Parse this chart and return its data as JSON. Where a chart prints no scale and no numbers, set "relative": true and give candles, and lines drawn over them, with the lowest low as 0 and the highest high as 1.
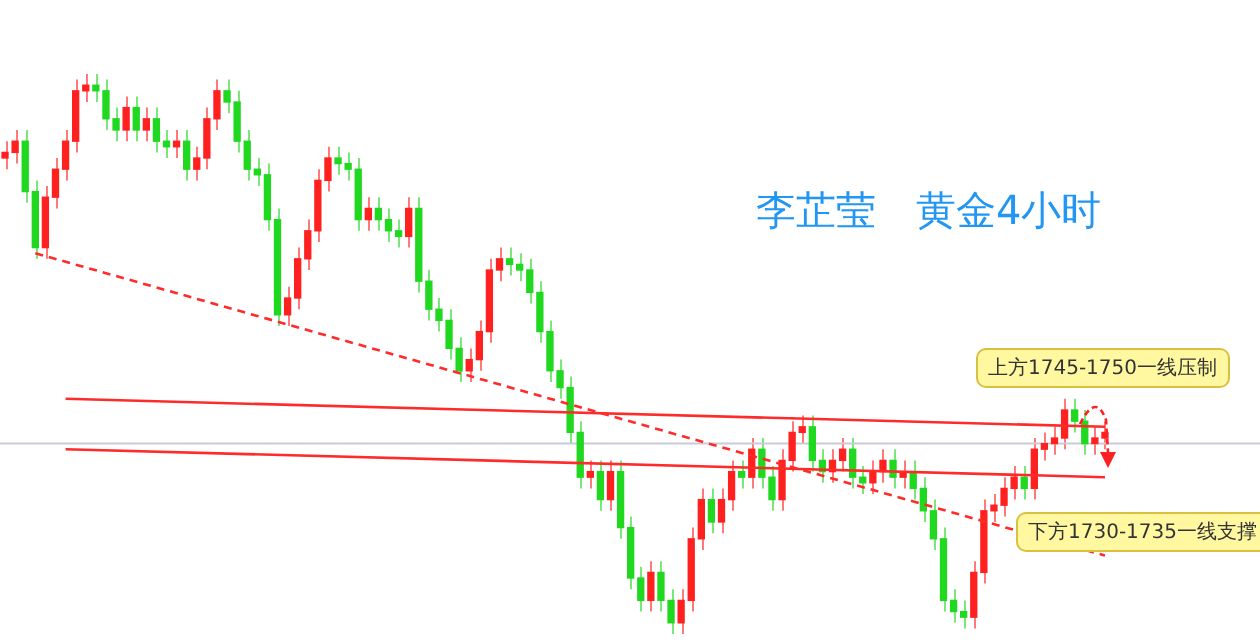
{
  "chart_data": {
    "type": "candlestick",
    "title": "李芷莹　黄金4小时",
    "relative": true,
    "categories": [
      null,
      null,
      null,
      null,
      null,
      null,
      null,
      null,
      null,
      null,
      null,
      null,
      null,
      null,
      null,
      null,
      null,
      null,
      null,
      null,
      null,
      null,
      null,
      null,
      null,
      null,
      null,
      null,
      null,
      null,
      null,
      null,
      null,
      null,
      null,
      null,
      null,
      null,
      null,
      null,
      null,
      null,
      null,
      null,
      null,
      null,
      null,
      null,
      null,
      null,
      null,
      null,
      null,
      null,
      null,
      null,
      null,
      null,
      null,
      null,
      null,
      null,
      null,
      null,
      null,
      null,
      null,
      null,
      null,
      null,
      null,
      null,
      null,
      null,
      null,
      null,
      null,
      null,
      null,
      null,
      null,
      null,
      null,
      null,
      null,
      null,
      null,
      null,
      null,
      null,
      null,
      null,
      null,
      null,
      null,
      null,
      null,
      null,
      null,
      null,
      null,
      null,
      null,
      null,
      null,
      null,
      null,
      null,
      null,
      null
    ],
    "ohlc": [
      [
        0.85,
        0.88,
        0.83,
        0.86
      ],
      [
        0.86,
        0.9,
        0.84,
        0.88
      ],
      [
        0.88,
        0.9,
        0.77,
        0.79
      ],
      [
        0.79,
        0.81,
        0.67,
        0.69
      ],
      [
        0.69,
        0.8,
        0.67,
        0.78
      ],
      [
        0.78,
        0.85,
        0.76,
        0.83
      ],
      [
        0.83,
        0.9,
        0.81,
        0.88
      ],
      [
        0.88,
        0.99,
        0.86,
        0.97
      ],
      [
        0.97,
        1,
        0.95,
        0.98
      ],
      [
        0.98,
        1,
        0.95,
        0.97
      ],
      [
        0.97,
        0.99,
        0.9,
        0.92
      ],
      [
        0.92,
        0.94,
        0.88,
        0.9
      ],
      [
        0.9,
        0.96,
        0.88,
        0.94
      ],
      [
        0.94,
        0.96,
        0.88,
        0.9
      ],
      [
        0.9,
        0.94,
        0.88,
        0.92
      ],
      [
        0.92,
        0.94,
        0.86,
        0.88
      ],
      [
        0.88,
        0.9,
        0.85,
        0.87
      ],
      [
        0.87,
        0.9,
        0.85,
        0.88
      ],
      [
        0.88,
        0.9,
        0.81,
        0.83
      ],
      [
        0.83,
        0.87,
        0.81,
        0.85
      ],
      [
        0.85,
        0.94,
        0.83,
        0.92
      ],
      [
        0.92,
        0.99,
        0.9,
        0.97
      ],
      [
        0.97,
        0.99,
        0.93,
        0.95
      ],
      [
        0.95,
        0.97,
        0.86,
        0.88
      ],
      [
        0.88,
        0.9,
        0.81,
        0.83
      ],
      [
        0.83,
        0.85,
        0.8,
        0.82
      ],
      [
        0.82,
        0.84,
        0.72,
        0.74
      ],
      [
        0.74,
        0.76,
        0.55,
        0.57
      ],
      [
        0.57,
        0.62,
        0.55,
        0.6
      ],
      [
        0.6,
        0.69,
        0.58,
        0.67
      ],
      [
        0.67,
        0.74,
        0.65,
        0.72
      ],
      [
        0.72,
        0.83,
        0.7,
        0.81
      ],
      [
        0.81,
        0.87,
        0.79,
        0.85
      ],
      [
        0.85,
        0.87,
        0.82,
        0.84
      ],
      [
        0.84,
        0.86,
        0.81,
        0.83
      ],
      [
        0.83,
        0.85,
        0.72,
        0.74
      ],
      [
        0.74,
        0.78,
        0.72,
        0.76
      ],
      [
        0.76,
        0.78,
        0.72,
        0.74
      ],
      [
        0.74,
        0.76,
        0.7,
        0.72
      ],
      [
        0.72,
        0.74,
        0.69,
        0.71
      ],
      [
        0.71,
        0.78,
        0.69,
        0.76
      ],
      [
        0.76,
        0.78,
        0.61,
        0.63
      ],
      [
        0.63,
        0.65,
        0.56,
        0.58
      ],
      [
        0.58,
        0.6,
        0.54,
        0.56
      ],
      [
        0.56,
        0.58,
        0.49,
        0.51
      ],
      [
        0.51,
        0.53,
        0.45,
        0.47
      ],
      [
        0.47,
        0.51,
        0.45,
        0.49
      ],
      [
        0.49,
        0.56,
        0.47,
        0.54
      ],
      [
        0.54,
        0.67,
        0.52,
        0.65
      ],
      [
        0.65,
        0.69,
        0.63,
        0.67
      ],
      [
        0.67,
        0.69,
        0.64,
        0.66
      ],
      [
        0.66,
        0.68,
        0.63,
        0.65
      ],
      [
        0.65,
        0.67,
        0.59,
        0.61
      ],
      [
        0.61,
        0.63,
        0.52,
        0.54
      ],
      [
        0.54,
        0.56,
        0.45,
        0.47
      ],
      [
        0.47,
        0.49,
        0.42,
        0.44
      ],
      [
        0.44,
        0.46,
        0.34,
        0.36
      ],
      [
        0.36,
        0.38,
        0.26,
        0.28
      ],
      [
        0.28,
        0.31,
        0.26,
        0.29
      ],
      [
        0.29,
        0.31,
        0.22,
        0.24
      ],
      [
        0.24,
        0.31,
        0.22,
        0.29
      ],
      [
        0.29,
        0.31,
        0.17,
        0.19
      ],
      [
        0.19,
        0.21,
        0.08,
        0.1
      ],
      [
        0.1,
        0.12,
        0.04,
        0.06
      ],
      [
        0.06,
        0.13,
        0.04,
        0.11
      ],
      [
        0.11,
        0.13,
        0.04,
        0.06
      ],
      [
        0.06,
        0.08,
        0,
        0.02
      ],
      [
        0.02,
        0.08,
        0,
        0.06
      ],
      [
        0.06,
        0.19,
        0.04,
        0.17
      ],
      [
        0.17,
        0.26,
        0.15,
        0.24
      ],
      [
        0.24,
        0.26,
        0.18,
        0.2
      ],
      [
        0.2,
        0.26,
        0.18,
        0.24
      ],
      [
        0.24,
        0.31,
        0.22,
        0.29
      ],
      [
        0.29,
        0.31,
        0.26,
        0.28
      ],
      [
        0.28,
        0.35,
        0.26,
        0.33
      ],
      [
        0.33,
        0.35,
        0.26,
        0.28
      ],
      [
        0.28,
        0.3,
        0.22,
        0.24
      ],
      [
        0.24,
        0.33,
        0.22,
        0.31
      ],
      [
        0.31,
        0.38,
        0.29,
        0.36
      ],
      [
        0.36,
        0.39,
        0.34,
        0.37
      ],
      [
        0.37,
        0.39,
        0.29,
        0.31
      ],
      [
        0.31,
        0.33,
        0.27,
        0.29
      ],
      [
        0.29,
        0.33,
        0.27,
        0.31
      ],
      [
        0.31,
        0.35,
        0.29,
        0.33
      ],
      [
        0.33,
        0.35,
        0.26,
        0.28
      ],
      [
        0.28,
        0.3,
        0.25,
        0.27
      ],
      [
        0.27,
        0.31,
        0.25,
        0.29
      ],
      [
        0.29,
        0.33,
        0.27,
        0.31
      ],
      [
        0.31,
        0.33,
        0.26,
        0.28
      ],
      [
        0.28,
        0.31,
        0.26,
        0.29
      ],
      [
        0.29,
        0.31,
        0.24,
        0.26
      ],
      [
        0.26,
        0.28,
        0.2,
        0.22
      ],
      [
        0.22,
        0.24,
        0.15,
        0.17
      ],
      [
        0.17,
        0.19,
        0.04,
        0.06
      ],
      [
        0.06,
        0.08,
        0.02,
        0.04
      ],
      [
        0.04,
        0.06,
        0.01,
        0.03
      ],
      [
        0.03,
        0.13,
        0.01,
        0.11
      ],
      [
        0.11,
        0.24,
        0.09,
        0.22
      ],
      [
        0.22,
        0.25,
        0.2,
        0.23
      ],
      [
        0.23,
        0.28,
        0.21,
        0.26
      ],
      [
        0.26,
        0.3,
        0.24,
        0.28
      ],
      [
        0.28,
        0.3,
        0.24,
        0.26
      ],
      [
        0.26,
        0.35,
        0.24,
        0.33
      ],
      [
        0.33,
        0.36,
        0.31,
        0.34
      ],
      [
        0.34,
        0.37,
        0.32,
        0.35
      ],
      [
        0.35,
        0.42,
        0.33,
        0.4
      ],
      [
        0.4,
        0.42,
        0.36,
        0.38
      ],
      [
        0.38,
        0.4,
        0.32,
        0.34
      ],
      [
        0.34,
        0.37,
        0.32,
        0.35
      ],
      [
        0.35,
        0.38,
        0.33,
        0.36
      ]
    ],
    "series": [
      {
        "type": "line",
        "color": "#ff2a2a",
        "line_style": "dashed",
        "values": [
          null,
          null,
          null,
          0.68,
          null,
          null,
          null,
          null,
          null,
          null,
          null,
          null,
          null,
          null,
          null,
          null,
          null,
          null,
          null,
          null,
          null,
          null,
          null,
          null,
          null,
          null,
          null,
          null,
          null,
          null,
          null,
          null,
          null,
          null,
          null,
          null,
          null,
          null,
          null,
          null,
          null,
          null,
          null,
          null,
          null,
          null,
          null,
          null,
          null,
          null,
          null,
          null,
          null,
          null,
          null,
          null,
          null,
          null,
          null,
          null,
          null,
          null,
          null,
          null,
          null,
          null,
          null,
          null,
          null,
          null,
          null,
          null,
          null,
          null,
          null,
          null,
          null,
          null,
          null,
          null,
          null,
          null,
          null,
          null,
          null,
          null,
          null,
          null,
          null,
          null,
          null,
          null,
          null,
          null,
          null,
          null,
          null,
          null,
          null,
          null,
          null,
          null,
          null,
          null,
          null,
          null,
          null,
          null,
          null,
          0.14
        ]
      },
      {
        "type": "line",
        "color": "#ff2a2a",
        "line_style": "solid",
        "values": [
          null,
          null,
          null,
          null,
          null,
          null,
          0.42,
          null,
          null,
          null,
          null,
          null,
          null,
          null,
          null,
          null,
          null,
          null,
          null,
          null,
          null,
          null,
          null,
          null,
          null,
          null,
          null,
          null,
          null,
          null,
          null,
          null,
          null,
          null,
          null,
          null,
          null,
          null,
          null,
          null,
          null,
          null,
          null,
          null,
          null,
          null,
          null,
          null,
          null,
          null,
          null,
          null,
          null,
          null,
          null,
          null,
          null,
          null,
          null,
          null,
          null,
          null,
          null,
          null,
          null,
          null,
          null,
          null,
          null,
          null,
          null,
          null,
          null,
          null,
          null,
          null,
          null,
          null,
          null,
          null,
          null,
          null,
          null,
          null,
          null,
          null,
          null,
          null,
          null,
          null,
          null,
          null,
          null,
          null,
          null,
          null,
          null,
          null,
          null,
          null,
          null,
          null,
          null,
          null,
          null,
          null,
          null,
          null,
          null,
          0.37
        ]
      },
      {
        "type": "line",
        "color": "#ff2a2a",
        "line_style": "solid",
        "values": [
          null,
          null,
          null,
          null,
          null,
          null,
          0.33,
          null,
          null,
          null,
          null,
          null,
          null,
          null,
          null,
          null,
          null,
          null,
          null,
          null,
          null,
          null,
          null,
          null,
          null,
          null,
          null,
          null,
          null,
          null,
          null,
          null,
          null,
          null,
          null,
          null,
          null,
          null,
          null,
          null,
          null,
          null,
          null,
          null,
          null,
          null,
          null,
          null,
          null,
          null,
          null,
          null,
          null,
          null,
          null,
          null,
          null,
          null,
          null,
          null,
          null,
          null,
          null,
          null,
          null,
          null,
          null,
          null,
          null,
          null,
          null,
          null,
          null,
          null,
          null,
          null,
          null,
          null,
          null,
          null,
          null,
          null,
          null,
          null,
          null,
          null,
          null,
          null,
          null,
          null,
          null,
          null,
          null,
          null,
          null,
          null,
          null,
          null,
          null,
          null,
          null,
          null,
          null,
          null,
          null,
          null,
          null,
          null,
          null,
          0.28
        ]
      }
    ],
    "ref_lines": [
      {
        "axis": "y",
        "value": 0.34,
        "color": "#c8ccd8"
      }
    ],
    "annotations": [
      "上方1745-1750一线压制",
      "下方1730-1735一线支撑"
    ]
  }
}
